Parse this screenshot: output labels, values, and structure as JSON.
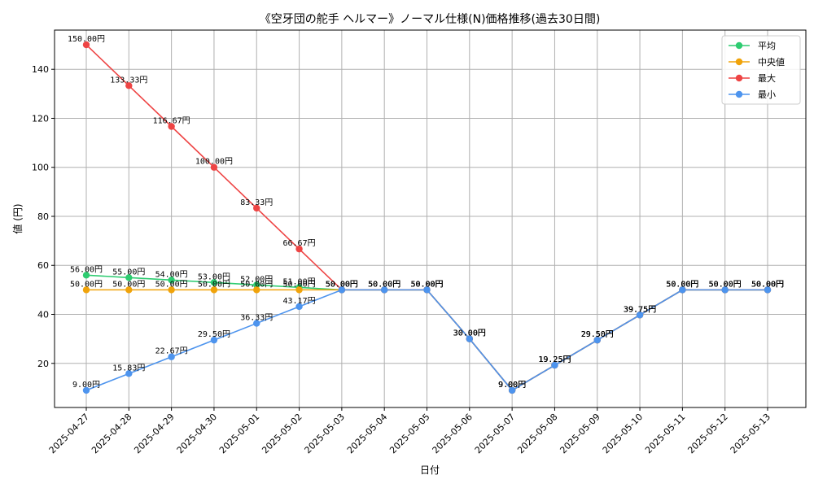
{
  "chart_data": {
    "type": "line",
    "title": "《空牙団の舵手 ヘルマー》ノーマル仕様(N)価格推移(過去30日間)",
    "xlabel": "日付",
    "ylabel": "値 (円)",
    "ylim": [
      2,
      156
    ],
    "yticks": [
      20,
      40,
      60,
      80,
      100,
      120,
      140
    ],
    "grid": true,
    "legend_position": "top-right",
    "categories": [
      "2025-04-27",
      "2025-04-28",
      "2025-04-29",
      "2025-04-30",
      "2025-05-01",
      "2025-05-02",
      "2025-05-03",
      "2025-05-04",
      "2025-05-05",
      "2025-05-06",
      "2025-05-07",
      "2025-05-08",
      "2025-05-09",
      "2025-05-10",
      "2025-05-11",
      "2025-05-12",
      "2025-05-13"
    ],
    "series": [
      {
        "name": "平均",
        "color": "#2ecc71",
        "values": [
          56.0,
          55.0,
          54.0,
          53.0,
          52.0,
          51.0,
          50.0,
          50.0,
          50.0,
          30.0,
          9.0,
          19.25,
          29.5,
          39.75,
          50.0,
          50.0,
          50.0
        ],
        "labels": [
          "56.00円",
          "55.00円",
          "54.00円",
          "53.00円",
          "52.00円",
          "51.00円",
          "50.00円",
          "50.00円",
          "50.00円",
          "30.00円",
          "9.00円",
          "19.25円",
          "29.50円",
          "39.75円",
          "50.00円",
          "50.00円",
          "50.00円"
        ]
      },
      {
        "name": "中央値",
        "color": "#f0a30a",
        "values": [
          50.0,
          50.0,
          50.0,
          50.0,
          50.0,
          50.0,
          50.0,
          50.0,
          50.0,
          30.0,
          9.0,
          19.25,
          29.5,
          39.75,
          50.0,
          50.0,
          50.0
        ],
        "labels": [
          "50.00円",
          "50.00円",
          "50.00円",
          "50.00円",
          "50.00円",
          "50.00円",
          "50.00円",
          "50.00円",
          "50.00円",
          "30.00円",
          "9.00円",
          "19.25円",
          "29.50円",
          "39.75円",
          "50.00円",
          "50.00円",
          "50.00円"
        ]
      },
      {
        "name": "最大",
        "color": "#ee4444",
        "values": [
          150.0,
          133.33,
          116.67,
          100.0,
          83.33,
          66.67,
          50.0,
          50.0,
          50.0,
          30.0,
          9.0,
          19.25,
          29.5,
          39.75,
          50.0,
          50.0,
          50.0
        ],
        "labels": [
          "150.00円",
          "133.33円",
          "116.67円",
          "100.00円",
          "83.33円",
          "66.67円",
          "50.00円",
          "50.00円",
          "50.00円",
          "30.00円",
          "9.00円",
          "19.25円",
          "29.50円",
          "39.75円",
          "50.00円",
          "50.00円",
          "50.00円"
        ]
      },
      {
        "name": "最小",
        "color": "#4d94ee",
        "values": [
          9.0,
          15.83,
          22.67,
          29.5,
          36.33,
          43.17,
          50.0,
          50.0,
          50.0,
          30.0,
          9.0,
          19.25,
          29.5,
          39.75,
          50.0,
          50.0,
          50.0
        ],
        "labels": [
          "9.00円",
          "15.83円",
          "22.67円",
          "29.50円",
          "36.33円",
          "43.17円",
          "50.00円",
          "50.00円",
          "50.00円",
          "30.00円",
          "9.00円",
          "19.25円",
          "29.50円",
          "39.75円",
          "50.00円",
          "50.00円",
          "50.00円"
        ]
      }
    ]
  }
}
